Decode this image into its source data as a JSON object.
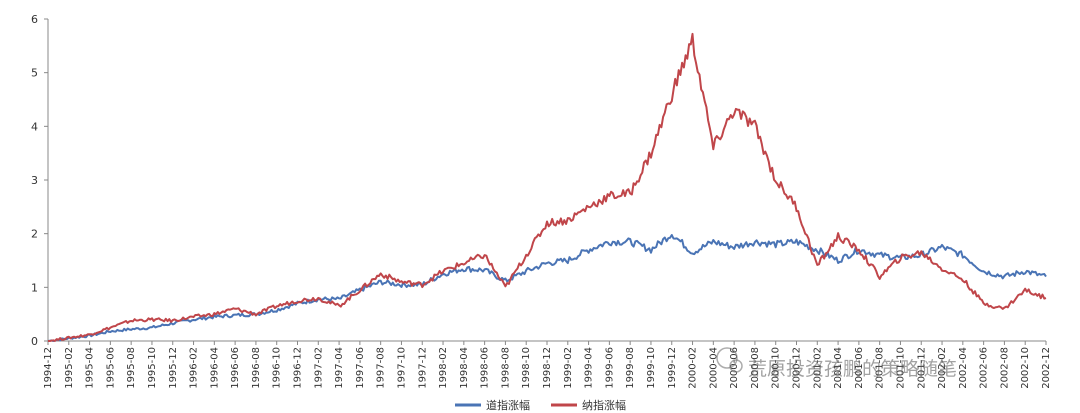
{
  "chart_data": {
    "type": "line",
    "ylim": [
      0,
      6
    ],
    "yticks": [
      0,
      1,
      2,
      3,
      4,
      5,
      6
    ],
    "grid": false,
    "legend_position": "bottom",
    "xtick_labels": [
      "1994-12",
      "1995-02",
      "1995-04",
      "1995-06",
      "1995-08",
      "1995-10",
      "1995-12",
      "1996-02",
      "1996-04",
      "1996-06",
      "1996-08",
      "1996-10",
      "1996-12",
      "1997-02",
      "1997-04",
      "1997-06",
      "1997-08",
      "1997-10",
      "1997-12",
      "1998-02",
      "1998-04",
      "1998-06",
      "1998-08",
      "1998-10",
      "1998-12",
      "1999-02",
      "1999-04",
      "1999-06",
      "1999-08",
      "1999-10",
      "1999-12",
      "2000-02",
      "2000-04",
      "2000-06",
      "2000-08",
      "2000-10",
      "2000-12",
      "2001-02",
      "2001-04",
      "2001-06",
      "2001-08",
      "2001-10",
      "2001-12",
      "2002-02",
      "2002-04",
      "2002-06",
      "2002-08",
      "2002-10",
      "2002-12"
    ],
    "series": [
      {
        "name": "道指涨幅",
        "color": "#4a74b5",
        "values": [
          0,
          0.05,
          0.1,
          0.18,
          0.22,
          0.25,
          0.33,
          0.4,
          0.45,
          0.48,
          0.5,
          0.58,
          0.7,
          0.78,
          0.78,
          0.95,
          1.1,
          1.05,
          1.05,
          1.25,
          1.35,
          1.32,
          1.12,
          1.3,
          1.45,
          1.5,
          1.7,
          1.85,
          1.85,
          1.7,
          2,
          1.65,
          1.85,
          1.75,
          1.85,
          1.8,
          1.85,
          1.7,
          1.5,
          1.7,
          1.6,
          1.55,
          1.6,
          1.75,
          1.6,
          1.3,
          1.2,
          1.3,
          1.2
        ]
      },
      {
        "name": "纳指涨幅",
        "color": "#c0464a",
        "values": [
          0,
          0.06,
          0.12,
          0.25,
          0.38,
          0.4,
          0.38,
          0.45,
          0.5,
          0.6,
          0.5,
          0.65,
          0.75,
          0.8,
          0.65,
          0.95,
          1.25,
          1.1,
          1.05,
          1.3,
          1.45,
          1.6,
          1.0,
          1.6,
          2.2,
          2.25,
          2.5,
          2.7,
          2.75,
          3.5,
          4.6,
          5.6,
          3.6,
          4.3,
          4.0,
          3.0,
          2.5,
          1.4,
          1.95,
          1.7,
          1.2,
          1.55,
          1.65,
          1.35,
          1.15,
          0.7,
          0.6,
          0.95,
          0.8
        ]
      }
    ]
  },
  "watermark": {
    "text": "荒原投资孩鹏的策略随笔"
  }
}
